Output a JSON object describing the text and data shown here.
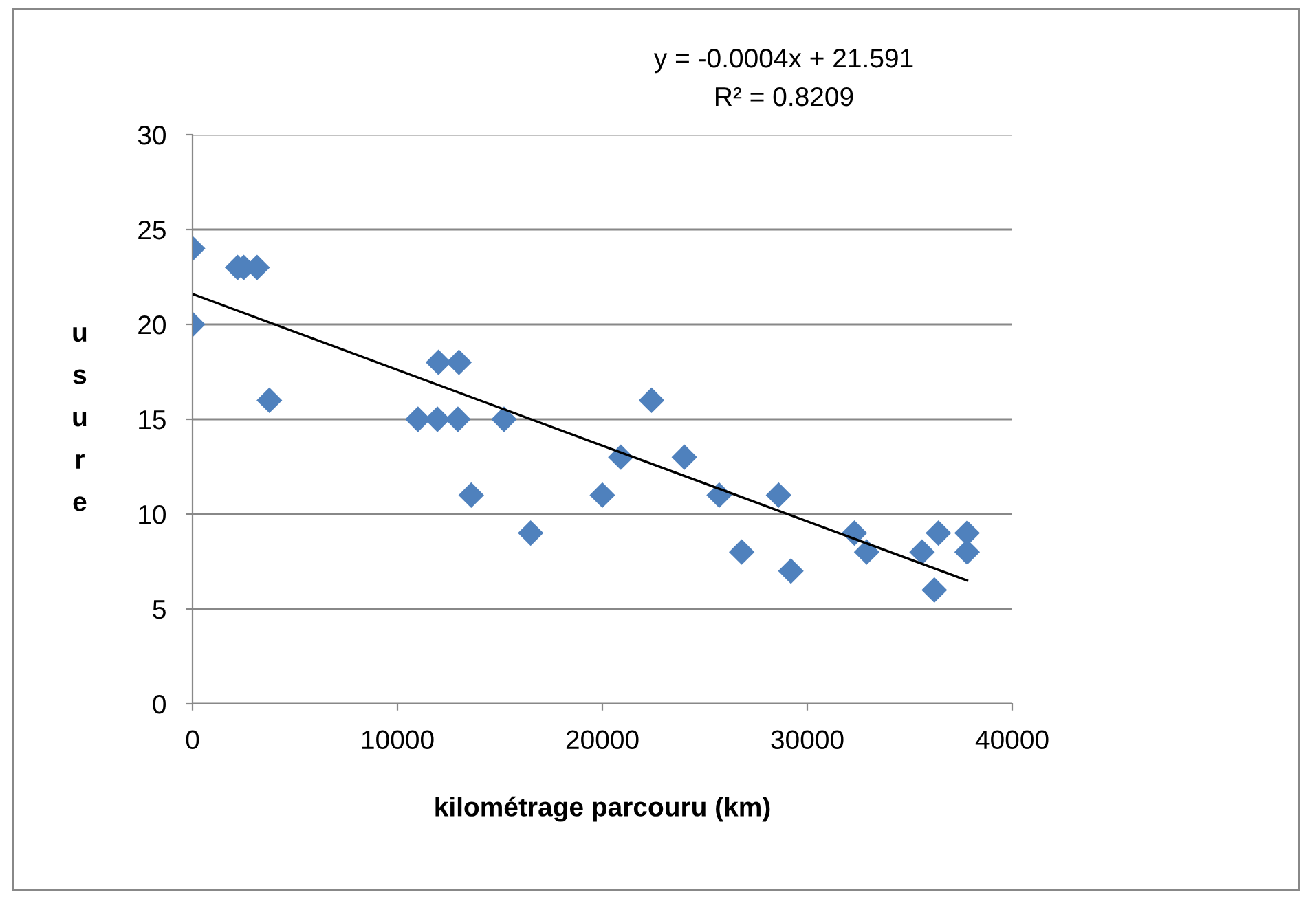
{
  "chart_data": {
    "type": "scatter",
    "xlabel": "kilométrage parcouru (km)",
    "ylabel": "usure",
    "annotations": [
      "y = -0.0004x + 21.591",
      "R² = 0.8209"
    ],
    "xlim": [
      0,
      40000
    ],
    "xticks": [
      0,
      10000,
      20000,
      30000,
      40000
    ],
    "ylim": [
      0,
      30
    ],
    "yticks": [
      0,
      5,
      10,
      15,
      20,
      25,
      30
    ],
    "grid": "y",
    "legend": false,
    "series": [
      {
        "marker": "diamond",
        "color": "#4f81bd",
        "x": [
          0,
          0,
          2200,
          2500,
          3150,
          3750,
          11000,
          12000,
          11950,
          13000,
          12950,
          13600,
          15200,
          16500,
          20000,
          20900,
          22400,
          24000,
          25700,
          26800,
          28600,
          29200,
          32300,
          32900,
          35600,
          36200,
          36400,
          37800,
          37800
        ],
        "values": [
          24,
          20,
          23,
          23,
          23,
          16,
          15,
          18,
          15,
          18,
          15,
          11,
          15,
          9,
          11,
          13,
          16,
          13,
          11,
          8,
          11,
          7,
          9,
          8,
          8,
          6,
          9,
          9,
          8
        ]
      },
      {
        "type": "line",
        "marker": "none",
        "line_style": "solid",
        "color": "#000000",
        "x": [
          0,
          37800
        ],
        "values": [
          21.6,
          6.5
        ]
      }
    ]
  }
}
